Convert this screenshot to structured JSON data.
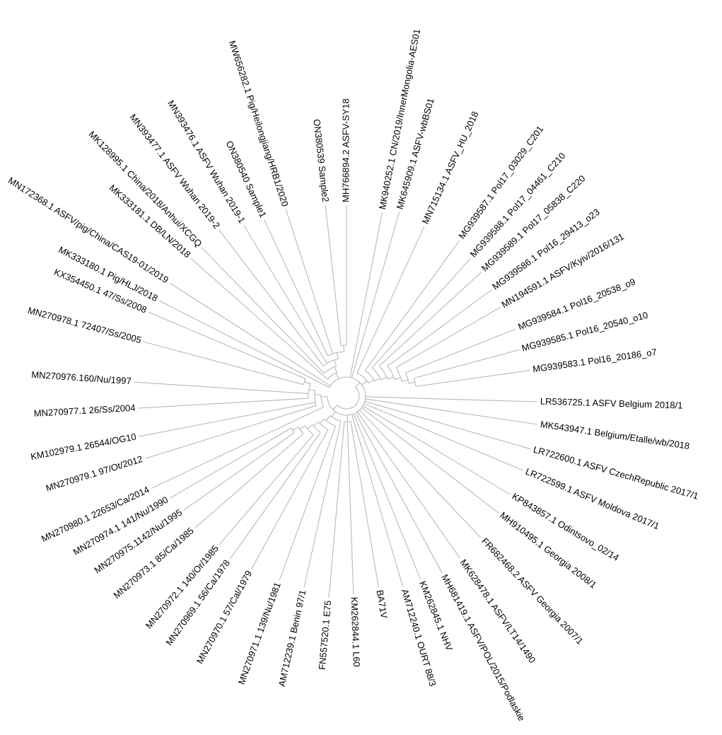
{
  "tree": {
    "leaves": [
      {
        "label": "MN270977.1 26/Ss/2004"
      },
      {
        "label": "MN270976.160/Nu/1997"
      },
      {
        "label": "MN270978.1 72407/Ss/2005"
      },
      {
        "label": "KX354450.1 47/Ss/2008"
      },
      {
        "label": "MK333180.1 Pig/HLJ/2018"
      },
      {
        "label": "MN172368.1 ASFV/pig/China/CAS19-01/2019"
      },
      {
        "label": "MK333181.1 DB/LN/2018"
      },
      {
        "label": "MK128995.1 China/2018/Anhui/XCGQ"
      },
      {
        "label": "MN393477.1 ASFV Wuhan 2019-2"
      },
      {
        "label": "MN393476.1 ASFV Wuhan 2019-1"
      },
      {
        "label": "ON380540 Sample1",
        "color": "#7fbf1f"
      },
      {
        "label": "MW656282.1 Pig/Heilongjiang/HRB1/2020"
      },
      {
        "label": "ON380539 Sample2",
        "color": "#2f86c9"
      },
      {
        "label": "MH766894.2 ASFV-SY18"
      },
      {
        "label": "MK940252.1 CN/2019/InnerMongolia-AES01"
      },
      {
        "label": "MK645909.1 ASFV-wbBS01"
      },
      {
        "label": "MN715134.1 ASFV_HU_2018"
      },
      {
        "label": "MG939587.1 Pol17_03029_C201"
      },
      {
        "label": "MG939588.1 Pol17_04461_C210"
      },
      {
        "label": "MG939589.1 Pol17_05838_C220"
      },
      {
        "label": "MG939586.1 Pol16_29413_o23"
      },
      {
        "label": "MN194591.1 ASFV/Kyiv/2016/131"
      },
      {
        "label": "MG939584.1 Pol16_20538_o9"
      },
      {
        "label": "MG939585.1 Pol16_20540_o10"
      },
      {
        "label": "MG939583.1 Pol16_20186_o7"
      },
      {
        "label": "LR536725.1 ASFV Belgium 2018/1"
      },
      {
        "label": "MK543947.1 Belgium/Etalle/wb/2018"
      },
      {
        "label": "LR722600.1 ASFV CzechRepublic 2017/1"
      },
      {
        "label": "LR722599.1 ASFV Moldova 2017/1"
      },
      {
        "label": "KP843857.1 Odintsovo_02/14"
      },
      {
        "label": "MH910495.1 Georgia 2008/1"
      },
      {
        "label": "FR682468.2 ASFV Georgia 2007/1"
      },
      {
        "label": "MK628478.1 ASFV/LT14/1490"
      },
      {
        "label": "MH681419.1 ASFV/POL/2015/Podlaskie"
      },
      {
        "label": "KM262845.1 NHV"
      },
      {
        "label": "AM712240.1 OURT 88/3"
      },
      {
        "label": "BA71V"
      },
      {
        "label": "KM262844.1 L60"
      },
      {
        "label": "FN557520.1 E75"
      },
      {
        "label": "AM712239.1 Benin 97/1"
      },
      {
        "label": "MN270971.1 139/Nu/1981"
      },
      {
        "label": "MN270970.1 57/Cal/1979"
      },
      {
        "label": "MN270969.1 56/Ca/1978"
      },
      {
        "label": "MN270972.1 140/Or/1985"
      },
      {
        "label": "MN270973.1 85/Ca/1985"
      },
      {
        "label": "MN270975.1142/Nu/1995"
      },
      {
        "label": "MN270974.1 141/Nu/1990"
      },
      {
        "label": "MN270980.1 22653/Ca/2014"
      },
      {
        "label": "MN270979.1 97/Ot/2012"
      },
      {
        "label": "KM102979.1 26544/OG10"
      }
    ]
  }
}
